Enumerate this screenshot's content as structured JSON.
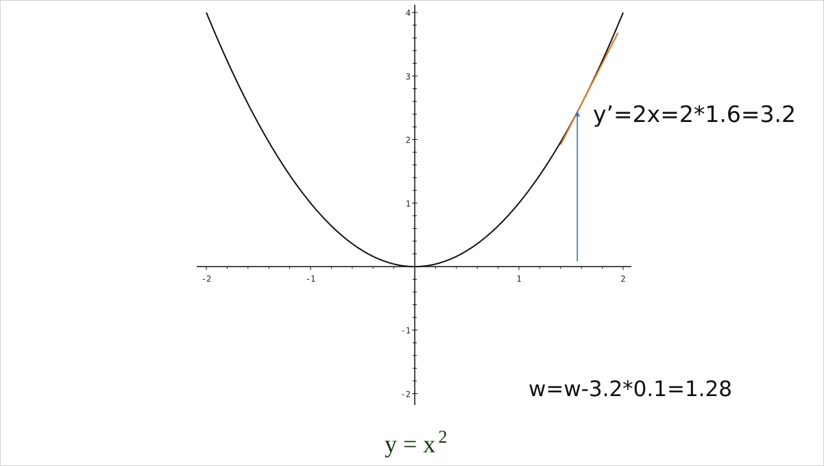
{
  "chart_data": {
    "type": "line",
    "function": "y = x^2",
    "xlim": [
      -2,
      2
    ],
    "ylim": [
      -2,
      4
    ],
    "x_ticks": [
      -2,
      -1,
      1,
      2
    ],
    "y_ticks": [
      -2,
      -1,
      1,
      2,
      3,
      4
    ],
    "x_tick_labels": [
      "-2",
      "-1",
      "1",
      "2"
    ],
    "y_tick_labels": [
      "-2",
      "-1",
      "1",
      "2",
      "3",
      "4"
    ],
    "minor_tick_step": 0.2,
    "grid": false,
    "series": [
      {
        "function": "x^2",
        "x_range": [
          -2,
          2
        ],
        "color": "#111111"
      }
    ],
    "tangent_line": {
      "at_x": 1.6,
      "slope": 3.2,
      "x_range": [
        1.4,
        1.95
      ],
      "color": "#e8731a"
    },
    "arrow": {
      "x": 1.56,
      "y_from": 0.08,
      "y_to": 2.45,
      "color": "#4472c4"
    }
  },
  "annotations": {
    "derivative": "y’=2x=2*1.6=3.2",
    "update": "w=w-3.2*0.1=1.28"
  },
  "caption": {
    "base": "y = x",
    "exponent": "2"
  }
}
